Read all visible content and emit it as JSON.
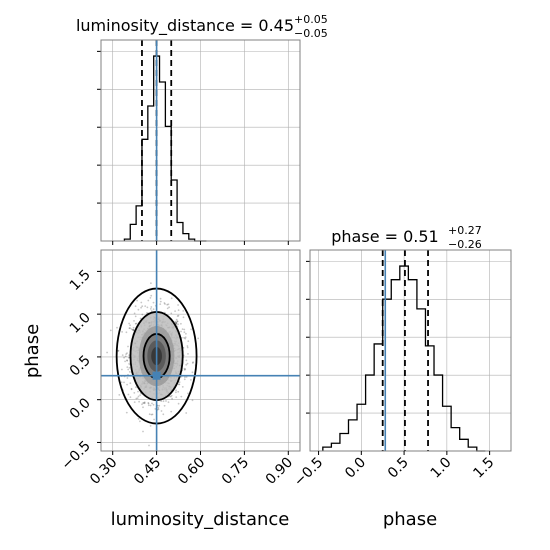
{
  "chart_data": {
    "type": "corner",
    "colors": {
      "truth": "#4682b4",
      "histogram": "#000000",
      "quantile_line": "#000000",
      "grid": "#b0b0b0",
      "frame": "#808080"
    },
    "parameters": [
      {
        "name": "luminosity_distance",
        "title": {
          "prefix": "luminosity_distance = 0.45",
          "sup": "+0.05",
          "sub": "−0.05"
        },
        "axis_label": "luminosity_distance",
        "xlim": [
          0.26,
          0.94
        ],
        "ticks": [
          0.3,
          0.45,
          0.6,
          0.75,
          0.9
        ],
        "tick_labels": [
          "0.30",
          "0.45",
          "0.60",
          "0.75",
          "0.90"
        ],
        "truth": 0.45,
        "quantiles": [
          0.4,
          0.45,
          0.5
        ],
        "histogram": {
          "bin_edges": [
            0.34,
            0.36,
            0.38,
            0.4,
            0.42,
            0.44,
            0.46,
            0.48,
            0.5,
            0.52,
            0.54,
            0.56,
            0.58,
            0.6,
            0.62
          ],
          "counts": [
            1,
            9,
            19,
            55,
            73,
            100,
            86,
            62,
            33,
            10,
            4,
            1,
            0,
            0
          ]
        }
      },
      {
        "name": "phase",
        "title": {
          "prefix": "phase = 0.51",
          "sup": "+0.27",
          "sub": "−0.26"
        },
        "axis_label": "phase",
        "xlim": [
          -0.6,
          1.75
        ],
        "ticks": [
          -0.5,
          0.0,
          0.5,
          1.0,
          1.5
        ],
        "tick_labels": [
          "−0.5",
          "0.0",
          "0.5",
          "1.0",
          "1.5"
        ],
        "truth": 0.28,
        "quantiles": [
          0.25,
          0.51,
          0.78
        ],
        "histogram": {
          "bin_edges": [
            -0.45,
            -0.35,
            -0.25,
            -0.15,
            -0.05,
            0.05,
            0.15,
            0.25,
            0.35,
            0.45,
            0.55,
            0.65,
            0.75,
            0.85,
            0.95,
            1.05,
            1.15,
            1.25,
            1.35,
            1.45
          ],
          "counts": [
            2,
            4,
            9,
            16,
            24,
            39,
            55,
            78,
            88,
            95,
            88,
            73,
            54,
            39,
            23,
            12,
            6,
            2,
            0
          ]
        }
      }
    ],
    "joint": {
      "x_param": "luminosity_distance",
      "y_param": "phase",
      "xlim": [
        0.26,
        0.94
      ],
      "ylim": [
        -0.6,
        1.75
      ],
      "yticks": [
        -0.5,
        0.0,
        0.5,
        1.0,
        1.5
      ],
      "ytick_labels": [
        "−0.5",
        "0.0",
        "0.5",
        "1.0",
        "1.5"
      ],
      "center": [
        0.45,
        0.51
      ],
      "sigma": [
        0.045,
        0.26
      ],
      "truth": [
        0.45,
        0.28
      ],
      "contour_levels": [
        0.39,
        0.86,
        0.99
      ]
    }
  }
}
